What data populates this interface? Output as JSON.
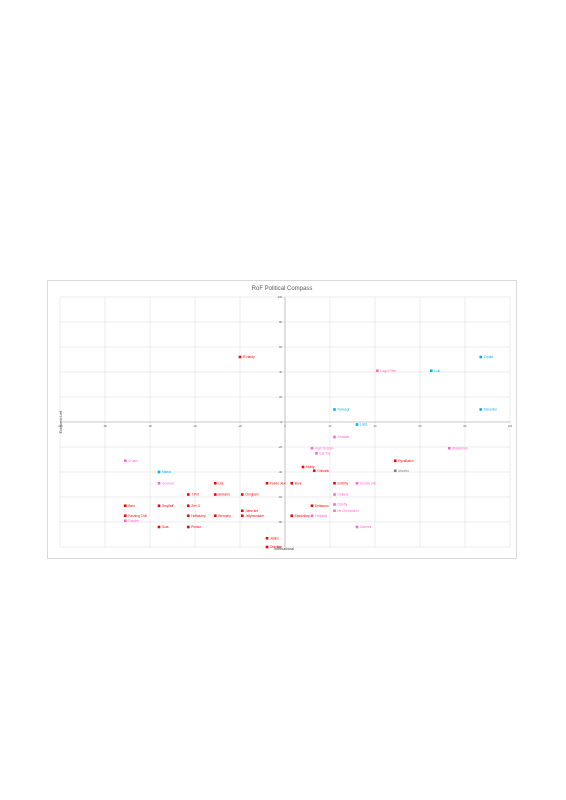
{
  "chart_data": {
    "type": "scatter",
    "title": "RoF Political Compass",
    "xlabel": "International",
    "ylabel": "Economic Left",
    "xlim": [
      -100,
      100
    ],
    "ylim": [
      -100,
      100
    ],
    "x_ticks": [
      "-100",
      "-80",
      "-60",
      "-40",
      "-20",
      "0",
      "20",
      "40",
      "60",
      "80",
      "100"
    ],
    "y_ticks": [
      "100",
      "80",
      "60",
      "40",
      "20",
      "0",
      "-20",
      "-40",
      "-60",
      "-80",
      "-100"
    ],
    "grid": true,
    "colors": {
      "red": "#ff0000",
      "pink": "#ff66cc",
      "blue": "#00b0f0",
      "grey": "#808080"
    },
    "points": [
      {
        "label": "R.Hardy",
        "x": -20,
        "y": 52,
        "color": "red"
      },
      {
        "label": "Crypto",
        "x": 87,
        "y": 52,
        "color": "blue"
      },
      {
        "label": "Cogul Pete",
        "x": 41,
        "y": 41,
        "color": "pink"
      },
      {
        "label": "Loki",
        "x": 65,
        "y": 41,
        "color": "blue"
      },
      {
        "label": "Norwegr",
        "x": 22,
        "y": 10,
        "color": "blue"
      },
      {
        "label": "Dissenter",
        "x": 87,
        "y": 10,
        "color": "blue"
      },
      {
        "label": "LGEL",
        "x": 32,
        "y": -2,
        "color": "blue"
      },
      {
        "label": "Zenabar",
        "x": 22,
        "y": -12,
        "color": "pink"
      },
      {
        "label": "High Tension",
        "x": 12,
        "y": -21,
        "color": "pink"
      },
      {
        "label": "Eat Toy",
        "x": 14,
        "y": -25,
        "color": "pink"
      },
      {
        "label": "Statesman",
        "x": 73,
        "y": -21,
        "color": "pink"
      },
      {
        "label": "Cr-tain",
        "x": -71,
        "y": -31,
        "color": "pink"
      },
      {
        "label": "Ryvalkstiln",
        "x": 49,
        "y": -31,
        "color": "red"
      },
      {
        "label": "Mukty",
        "x": 8,
        "y": -36,
        "color": "red"
      },
      {
        "label": "Ghisnbb",
        "x": 13,
        "y": -39,
        "color": "red"
      },
      {
        "label": "Morebo",
        "x": 49,
        "y": -39,
        "color": "grey"
      },
      {
        "label": "Marka",
        "x": -56,
        "y": -40,
        "color": "blue"
      },
      {
        "label": "Gooreso",
        "x": -56,
        "y": -49,
        "color": "pink"
      },
      {
        "label": "Lita",
        "x": -31,
        "y": -49,
        "color": "red"
      },
      {
        "label": "Feerie Jew",
        "x": -8,
        "y": -49,
        "color": "red"
      },
      {
        "label": "Bore",
        "x": 3,
        "y": -49,
        "color": "red"
      },
      {
        "label": "Emblhy",
        "x": 22,
        "y": -49,
        "color": "red"
      },
      {
        "label": "Debate info",
        "x": 32,
        "y": -49,
        "color": "pink"
      },
      {
        "label": "T Pot",
        "x": -43,
        "y": -58,
        "color": "red"
      },
      {
        "label": "Berkeiro",
        "x": -31,
        "y": -58,
        "color": "red"
      },
      {
        "label": "Clingham",
        "x": -19,
        "y": -58,
        "color": "red"
      },
      {
        "label": "Gelkers",
        "x": 22,
        "y": -58,
        "color": "pink"
      },
      {
        "label": "Baro",
        "x": -71,
        "y": -67,
        "color": "red"
      },
      {
        "label": "Smyllaff",
        "x": -56,
        "y": -67,
        "color": "red"
      },
      {
        "label": "Zen G",
        "x": -43,
        "y": -67,
        "color": "red"
      },
      {
        "label": "Deltamon",
        "x": 12,
        "y": -67,
        "color": "red"
      },
      {
        "label": "Dizeffy",
        "x": 22,
        "y": -66,
        "color": "pink"
      },
      {
        "label": "Mr Chemizal-in",
        "x": 22,
        "y": -71,
        "color": "pink"
      },
      {
        "label": "Fanning Chill",
        "x": -71,
        "y": -75,
        "color": "red"
      },
      {
        "label": "Flauder",
        "x": -71,
        "y": -79,
        "color": "pink"
      },
      {
        "label": "Hoffalump",
        "x": -43,
        "y": -75,
        "color": "red"
      },
      {
        "label": "Rexophy",
        "x": -31,
        "y": -75,
        "color": "red"
      },
      {
        "label": "Jame shf",
        "x": -19,
        "y": -71,
        "color": "red"
      },
      {
        "label": "Jellymunkder",
        "x": -19,
        "y": -75,
        "color": "red"
      },
      {
        "label": "Spewnling",
        "x": 3,
        "y": -75,
        "color": "red"
      },
      {
        "label": "Fanfadly",
        "x": 12,
        "y": -75,
        "color": "pink"
      },
      {
        "label": "Sula",
        "x": -56,
        "y": -84,
        "color": "red"
      },
      {
        "label": "Pimbur",
        "x": -43,
        "y": -84,
        "color": "red"
      },
      {
        "label": "Galbres",
        "x": 32,
        "y": -84,
        "color": "pink"
      },
      {
        "label": "Jellins",
        "x": -8,
        "y": -93,
        "color": "red"
      },
      {
        "label": "Cravilla",
        "x": -8,
        "y": -100,
        "color": "red"
      }
    ]
  }
}
